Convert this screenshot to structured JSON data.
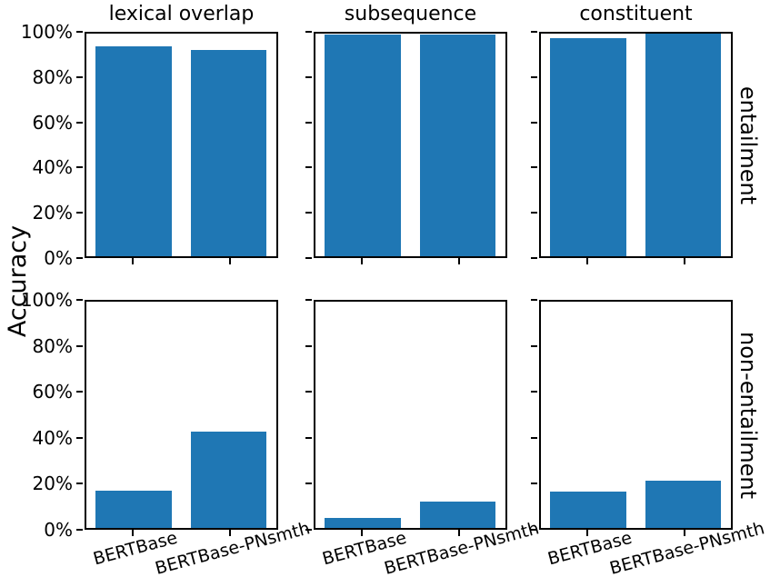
{
  "chart_data": {
    "type": "bar",
    "ylabel": "Accuracy",
    "categories": [
      "BERTBase",
      "BERTBase-PNsmth"
    ],
    "col_titles": [
      "lexical overlap",
      "subsequence",
      "constituent"
    ],
    "row_labels": [
      "entailment",
      "non-entailment"
    ],
    "ytick_labels": [
      "0%",
      "20%",
      "40%",
      "60%",
      "80%",
      "100%"
    ],
    "ytick_values": [
      0,
      20,
      40,
      60,
      80,
      100
    ],
    "ylim": [
      0,
      100
    ],
    "bar_color": "#1f77b4",
    "grid": false,
    "legend": "none",
    "subplots": [
      {
        "row_label": "entailment",
        "col_title": "lexical overlap",
        "values": [
          94.5,
          92.5
        ]
      },
      {
        "row_label": "entailment",
        "col_title": "subsequence",
        "values": [
          99.5,
          99.5
        ]
      },
      {
        "row_label": "entailment",
        "col_title": "constituent",
        "values": [
          98.0,
          100.0
        ]
      },
      {
        "row_label": "non-entailment",
        "col_title": "lexical overlap",
        "values": [
          16.5,
          42.5
        ]
      },
      {
        "row_label": "non-entailment",
        "col_title": "subsequence",
        "values": [
          4.5,
          11.5
        ]
      },
      {
        "row_label": "non-entailment",
        "col_title": "constituent",
        "values": [
          16.0,
          21.0
        ]
      }
    ]
  }
}
